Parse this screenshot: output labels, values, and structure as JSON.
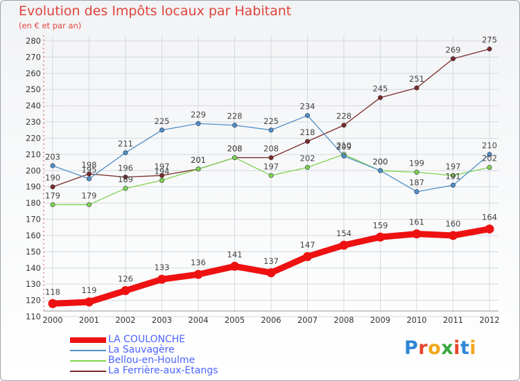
{
  "header": {
    "title": "Evolution des Impôts locaux par Habitant",
    "subtitle": "(en € et par an)"
  },
  "logo": {
    "text": "Proxiti",
    "letters": [
      "P",
      "r",
      "o",
      "x",
      "i",
      "t",
      "i"
    ],
    "colors": [
      "#2f86d6",
      "#e8452c",
      "#f2a71a",
      "#3ba83f",
      "#e8452c",
      "#2f86d6",
      "#f2a71a"
    ]
  },
  "chart_data": {
    "type": "line",
    "title": "Evolution des Impôts locaux par Habitant",
    "subtitle": "(en € et par an)",
    "xlabel": "",
    "ylabel": "",
    "x": [
      "2000",
      "2001",
      "2002",
      "2003",
      "2004",
      "2005",
      "2006",
      "2007",
      "2008",
      "2009",
      "2010",
      "2011",
      "2012"
    ],
    "ylim": [
      110,
      280
    ],
    "yticks": [
      110,
      120,
      130,
      140,
      150,
      160,
      170,
      180,
      190,
      200,
      210,
      220,
      230,
      240,
      250,
      260,
      270,
      280
    ],
    "grid": true,
    "legend_position": "bottom-left",
    "series": [
      {
        "name": "LA COULONCHE",
        "color": "#ee1111",
        "values": [
          118,
          119,
          126,
          133,
          136,
          141,
          137,
          147,
          154,
          159,
          161,
          160,
          164
        ]
      },
      {
        "name": "La Sauvagère",
        "color": "#4f8fc8",
        "values": [
          203,
          195,
          211,
          225,
          229,
          228,
          225,
          234,
          209,
          200,
          187,
          191,
          210
        ]
      },
      {
        "name": "Bellou-en-Houlme",
        "color": "#7fd44f",
        "values": [
          179,
          179,
          189,
          194,
          201,
          208,
          197,
          202,
          210,
          200,
          199,
          197,
          202
        ]
      },
      {
        "name": "La Ferrière-aux-Etangs",
        "color": "#7a2a28",
        "values": [
          190,
          198,
          196,
          197,
          201,
          208,
          208,
          218,
          228,
          245,
          251,
          269,
          275
        ]
      }
    ]
  }
}
